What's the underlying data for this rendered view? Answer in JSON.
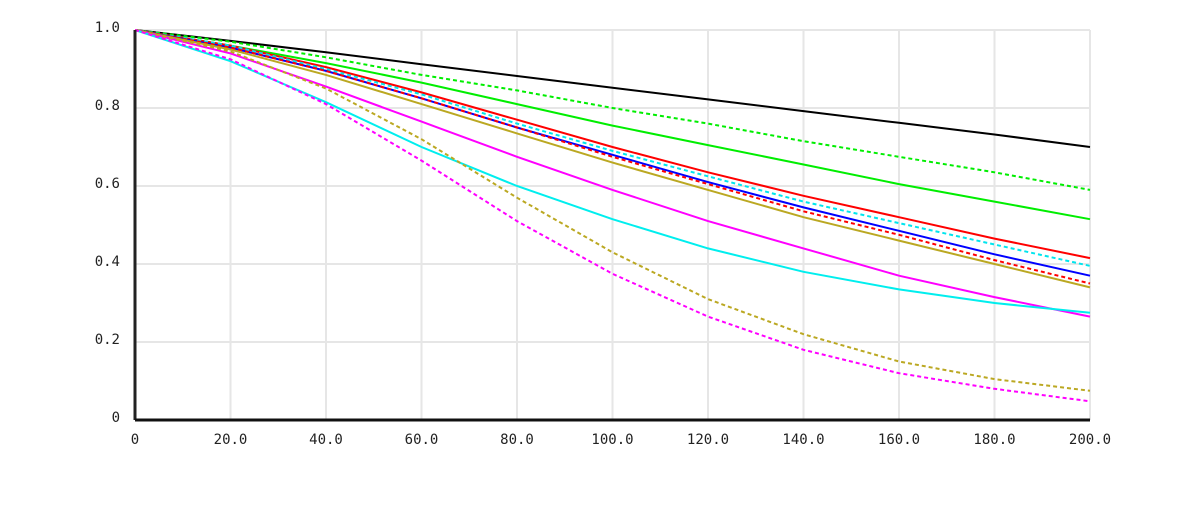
{
  "chart_data": {
    "type": "line",
    "x": [
      0,
      20,
      40,
      60,
      80,
      100,
      120,
      140,
      160,
      180,
      200
    ],
    "xlim": [
      0,
      200
    ],
    "xticks": [
      0,
      {
        "value": 20,
        "label": "20.0"
      },
      {
        "value": 40,
        "label": "40.0"
      },
      {
        "value": 60,
        "label": "60.0"
      },
      {
        "value": 80,
        "label": "80.0"
      },
      {
        "value": 100,
        "label": "100.0"
      },
      {
        "value": 120,
        "label": "120.0"
      },
      {
        "value": 140,
        "label": "140.0"
      },
      {
        "value": 160,
        "label": "160.0"
      },
      {
        "value": 180,
        "label": "180.0"
      },
      {
        "value": 200,
        "label": "200.0"
      }
    ],
    "ylim": [
      0,
      1
    ],
    "yticks": [
      0,
      0.2,
      0.4,
      0.6,
      0.8,
      {
        "value": 1,
        "label": "1.0"
      }
    ],
    "grid": true,
    "series": [
      {
        "color": "#000000",
        "style": "solid",
        "values": [
          1,
          0.972,
          0.943,
          0.912,
          0.882,
          0.852,
          0.822,
          0.792,
          0.762,
          0.732,
          0.7
        ]
      },
      {
        "color": "#00ee00",
        "style": "dashed",
        "values": [
          1,
          0.97,
          0.93,
          0.885,
          0.845,
          0.8,
          0.76,
          0.715,
          0.675,
          0.635,
          0.59
        ]
      },
      {
        "color": "#00ee00",
        "style": "solid",
        "values": [
          1,
          0.96,
          0.915,
          0.865,
          0.81,
          0.755,
          0.705,
          0.655,
          0.605,
          0.56,
          0.515
        ]
      },
      {
        "color": "#ff0000",
        "style": "solid",
        "values": [
          1,
          0.96,
          0.905,
          0.84,
          0.77,
          0.7,
          0.635,
          0.575,
          0.52,
          0.465,
          0.415
        ]
      },
      {
        "color": "#00e5ee",
        "style": "dashed",
        "values": [
          1,
          0.96,
          0.9,
          0.835,
          0.76,
          0.69,
          0.625,
          0.56,
          0.505,
          0.45,
          0.395
        ]
      },
      {
        "color": "#0000ff",
        "style": "solid",
        "values": [
          1,
          0.955,
          0.895,
          0.825,
          0.75,
          0.68,
          0.61,
          0.545,
          0.485,
          0.425,
          0.37
        ]
      },
      {
        "color": "#ff0000",
        "style": "dashed",
        "values": [
          1,
          0.955,
          0.895,
          0.825,
          0.75,
          0.675,
          0.605,
          0.535,
          0.475,
          0.41,
          0.35
        ]
      },
      {
        "color": "#bba822",
        "style": "solid",
        "values": [
          1,
          0.95,
          0.885,
          0.81,
          0.735,
          0.66,
          0.59,
          0.52,
          0.46,
          0.4,
          0.34
        ]
      },
      {
        "color": "#ff00ff",
        "style": "solid",
        "values": [
          1,
          0.94,
          0.855,
          0.765,
          0.675,
          0.59,
          0.51,
          0.44,
          0.37,
          0.315,
          0.265
        ]
      },
      {
        "color": "#00eeee",
        "style": "solid",
        "values": [
          1,
          0.92,
          0.815,
          0.7,
          0.6,
          0.515,
          0.44,
          0.38,
          0.335,
          0.3,
          0.275
        ]
      },
      {
        "color": "#bba822",
        "style": "dashed",
        "values": [
          1,
          0.945,
          0.85,
          0.72,
          0.57,
          0.43,
          0.31,
          0.22,
          0.15,
          0.105,
          0.075
        ]
      },
      {
        "color": "#ff00ff",
        "style": "dashed",
        "values": [
          1,
          0.925,
          0.81,
          0.665,
          0.51,
          0.375,
          0.265,
          0.18,
          0.12,
          0.08,
          0.048
        ]
      }
    ]
  }
}
